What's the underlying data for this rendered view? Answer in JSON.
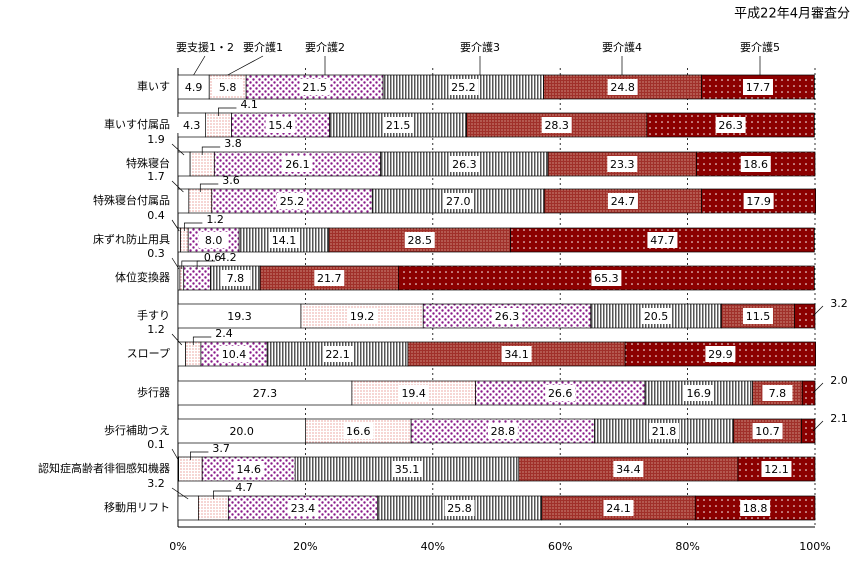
{
  "chart_data": {
    "type": "stacked-bar-horizontal",
    "subtitle": "平成22年4月審査分",
    "categories": [
      "車いす",
      "車いす付属品",
      "特殊寝台",
      "特殊寝台付属品",
      "床ずれ防止用具",
      "体位変換器",
      "手すり",
      "スロープ",
      "歩行器",
      "歩行補助つえ",
      "認知症高齢者徘徊感知機器",
      "移動用リフト"
    ],
    "series": [
      {
        "name": "要支援1・2",
        "color": "#ffffff",
        "values": [
          4.9,
          4.3,
          1.9,
          1.7,
          0.4,
          0.3,
          19.3,
          1.2,
          27.3,
          20.0,
          0.1,
          3.2
        ],
        "value_labels": [
          "4.9",
          "4.3",
          "1.9",
          "1.7",
          "0.4",
          "0.3",
          "19.3",
          "1.2",
          "27.3",
          "20.0",
          "0.1",
          "3.2"
        ]
      },
      {
        "name": "要介護1",
        "color": "#e0706a",
        "values": [
          5.8,
          4.1,
          3.8,
          3.6,
          1.2,
          0.6,
          19.2,
          2.4,
          19.4,
          16.6,
          3.7,
          4.7
        ],
        "value_labels": [
          "5.8",
          "4.1",
          "3.8",
          "3.6",
          "1.2",
          "0.6",
          "19.2",
          "2.4",
          "19.4",
          "16.6",
          "3.7",
          "4.7"
        ]
      },
      {
        "name": "要介護2",
        "color": "#8a1a8a",
        "values": [
          21.5,
          15.4,
          26.1,
          25.2,
          8.0,
          4.2,
          26.3,
          10.4,
          26.6,
          28.8,
          14.6,
          23.4
        ],
        "value_labels": [
          "21.5",
          "15.4",
          "26.1",
          "25.2",
          "8.0",
          "4.2",
          "26.3",
          "10.4",
          "26.6",
          "28.8",
          "14.6",
          "23.4"
        ]
      },
      {
        "name": "要介護3",
        "color": "#555555",
        "values": [
          25.2,
          21.5,
          26.3,
          27.0,
          14.1,
          7.8,
          20.5,
          22.1,
          16.9,
          21.8,
          35.1,
          25.8
        ],
        "value_labels": [
          "25.2",
          "21.5",
          "26.3",
          "27.0",
          "14.1",
          "7.8",
          "20.5",
          "22.1",
          "16.9",
          "21.8",
          "35.1",
          "25.8"
        ]
      },
      {
        "name": "要介護4",
        "color": "#a0302a",
        "values": [
          24.8,
          28.3,
          23.3,
          24.7,
          28.5,
          21.7,
          11.5,
          34.1,
          7.8,
          10.7,
          34.4,
          24.1
        ],
        "value_labels": [
          "24.8",
          "28.3",
          "23.3",
          "24.7",
          "28.5",
          "21.7",
          "11.5",
          "34.1",
          "7.8",
          "10.7",
          "34.4",
          "24.1"
        ]
      },
      {
        "name": "要介護5",
        "color": "#8b0000",
        "values": [
          17.7,
          26.3,
          18.6,
          17.9,
          47.7,
          65.3,
          3.2,
          29.9,
          2.0,
          2.1,
          12.1,
          18.8
        ],
        "value_labels": [
          "17.7",
          "26.3",
          "18.6",
          "17.9",
          "47.7",
          "65.3",
          "3.2",
          "29.9",
          "2.0",
          "2.1",
          "12.1",
          "18.8"
        ]
      }
    ],
    "xlim": [
      0,
      100
    ],
    "xticks": [
      {
        "value": 0,
        "label": "0%"
      },
      {
        "value": 20,
        "label": "20%"
      },
      {
        "value": 40,
        "label": "40%"
      },
      {
        "value": 60,
        "label": "60%"
      },
      {
        "value": 80,
        "label": "80%"
      },
      {
        "value": 100,
        "label": "100%"
      }
    ],
    "grid": true
  }
}
